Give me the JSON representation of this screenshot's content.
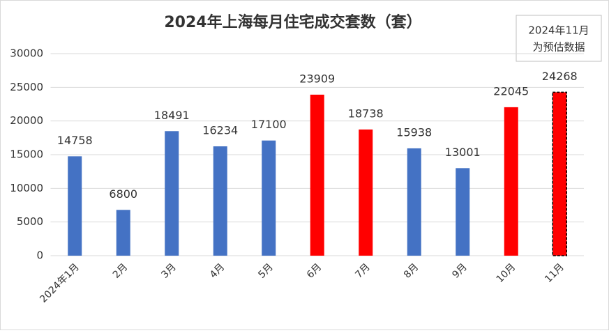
{
  "chart_data": {
    "type": "bar",
    "title": "2024年上海每月住宅成交套数（套）",
    "categories": [
      "2024年1月",
      "2月",
      "3月",
      "4月",
      "5月",
      "6月",
      "7月",
      "8月",
      "9月",
      "10月",
      "11月"
    ],
    "values": [
      14758,
      6800,
      18491,
      16234,
      17100,
      23909,
      18738,
      15938,
      13001,
      22045,
      24268
    ],
    "colors": [
      "#4472c4",
      "#4472c4",
      "#4472c4",
      "#4472c4",
      "#4472c4",
      "#ff0000",
      "#ff0000",
      "#4472c4",
      "#4472c4",
      "#ff0000",
      "#ff0000"
    ],
    "bar_outline": [
      null,
      null,
      null,
      null,
      null,
      null,
      null,
      null,
      null,
      null,
      "dashed"
    ],
    "annotation": [
      "2024年11月",
      "为预估数据"
    ],
    "ylim": [
      0,
      30000
    ],
    "yticks": [
      0,
      5000,
      10000,
      15000,
      20000,
      25000,
      30000
    ],
    "grid": true
  }
}
